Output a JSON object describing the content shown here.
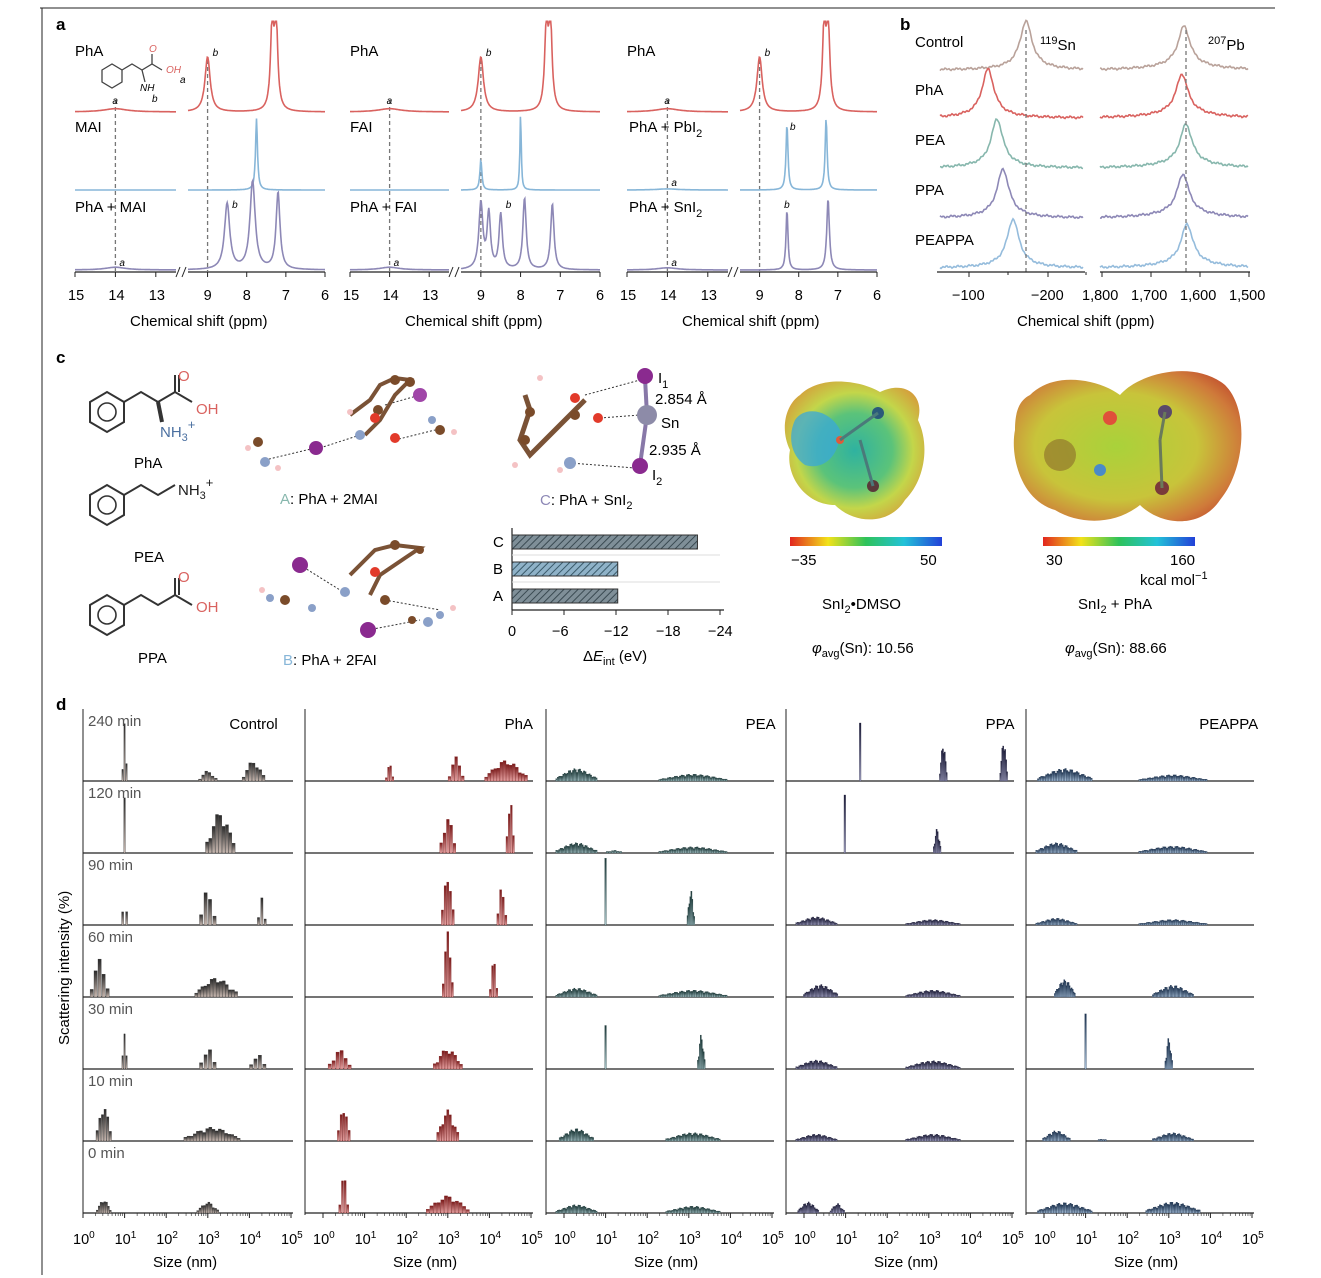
{
  "panel_letters": {
    "a": "a",
    "b": "b",
    "c": "c",
    "d": "d"
  },
  "colors": {
    "red": "#d9625f",
    "blue": "#87b6d8",
    "purple": "#8d88b6",
    "brown": "#b9a29a",
    "teal": "#87b7ad",
    "sky": "#95bcdc",
    "axis": "#222222",
    "dash": "#777777"
  },
  "nmr": {
    "chart_data": {
      "type": "line",
      "xlabel": "Chemical shift (ppm)",
      "x_ticks": [
        "15",
        "14",
        "13",
        "9",
        "8",
        "7",
        "6"
      ],
      "panels": [
        {
          "rows": [
            "PhA",
            "MAI",
            "PhA + MAI"
          ]
        },
        {
          "rows": [
            "PhA",
            "FAI",
            "PhA + FAI"
          ]
        },
        {
          "rows": [
            "PhA",
            "PhA + PbI",
            "PhA + SnI"
          ]
        }
      ],
      "peak_a": "a",
      "peak_b": "b",
      "sub2": "2"
    }
  },
  "sn_pb": {
    "chart_data": {
      "type": "line",
      "xlabel": "Chemical shift (ppm)",
      "sn_label_sup": "119",
      "sn_label": "Sn",
      "pb_label_sup": "207",
      "pb_label": "Pb",
      "rows": [
        "Control",
        "PhA",
        "PEA",
        "PPA",
        "PEAPPA"
      ],
      "sn_ticks": [
        "−100",
        "−200"
      ],
      "pb_ticks": [
        "1,800",
        "1,700",
        "1,600",
        "1,500"
      ]
    }
  },
  "panel_c": {
    "molecules": [
      "PhA",
      "PEA",
      "PPA"
    ],
    "atom_labels": {
      "O": "O",
      "OH": "OH",
      "NH3": "NH",
      "NH3_sub": "3",
      "plus": "+"
    },
    "structures": [
      {
        "letter": "A",
        "text": ": PhA + 2MAI"
      },
      {
        "letter": "B",
        "text": ": PhA + 2FAI"
      },
      {
        "letter": "C",
        "text": ": PhA + SnI"
      }
    ],
    "bond_labels": {
      "I1": "I",
      "I1_sub": "1",
      "d1": "2.854 Å",
      "Sn": "Sn",
      "d2": "2.935 Å",
      "I2": "I",
      "I2_sub": "2"
    },
    "bar_chart": {
      "chart_data": {
        "type": "bar",
        "categories": [
          "C",
          "B",
          "A"
        ],
        "values": [
          -21.4,
          -12.2,
          -12.2
        ],
        "xlim": [
          0,
          -24
        ],
        "x_ticks": [
          "0",
          "−6",
          "−12",
          "−18",
          "−24"
        ],
        "xlabel": "ΔE",
        "xlabel_sub": "int",
        "xlabel_unit": " (eV)"
      }
    },
    "esp": [
      {
        "cb_min": "−35",
        "cb_max": "50",
        "name": "SnI",
        "name_sub": "2",
        "name_rest": "•DMSO",
        "phi": "φ",
        "phi_sub": "avg",
        "phi_rest": "(Sn): 10.56"
      },
      {
        "cb_min": "30",
        "cb_max": "160",
        "unit": "kcal mol",
        "unit_sup": "−1",
        "name": "SnI",
        "name_sub": "2",
        "name_rest": " + PhA",
        "phi": "φ",
        "phi_sub": "avg",
        "phi_rest": "(Sn): 88.66"
      }
    ]
  },
  "dls": {
    "chart_data": {
      "type": "bar",
      "ylabel": "Scattering intensity (%)",
      "xlabel": "Size (nm)",
      "x_scale": "log",
      "x_ticks": [
        "10",
        "10",
        "10",
        "10",
        "10",
        "10"
      ],
      "x_tick_exps": [
        "0",
        "1",
        "2",
        "3",
        "4",
        "5"
      ],
      "columns": [
        "Control",
        "PhA",
        "PEA",
        "PPA",
        "PEAPPA"
      ],
      "times": [
        "240 min",
        "120 min",
        "90 min",
        "60 min",
        "30 min",
        "10 min",
        "0 min"
      ]
    }
  }
}
